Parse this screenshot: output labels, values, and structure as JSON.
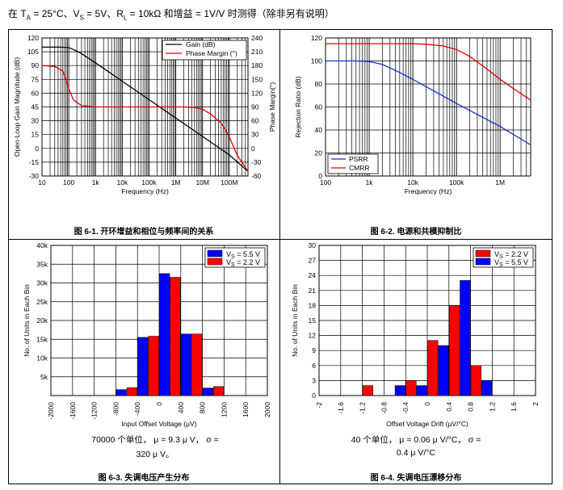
{
  "header": {
    "text": "在 TA = 25°C、VS = 5V、RL = 10kΩ 和增益 = 1V/V 时测得（除非另有说明）",
    "prefix": "在 T",
    "ta_sub": "A",
    "mid1": " = 25°C、V",
    "vs_sub": "S",
    "mid2": " = 5V、R",
    "rl_sub": "L",
    "suffix": " = 10kΩ 和增益 = 1V/V 时测得（除非另有说明）"
  },
  "chart_data": [
    {
      "id": "fig1",
      "type": "line",
      "caption": "图 6-1. 开环增益和相位与频率间的关系",
      "xlabel": "Frequency (Hz)",
      "ylabel": "Open-Loop Gain Magnitude (dB)",
      "y2label": "Phase Margin(°)",
      "xscale": "log",
      "xlim": [
        10,
        500000000
      ],
      "ylim": [
        -30,
        120
      ],
      "y2lim": [
        -60,
        240
      ],
      "x_ticks": [
        10,
        100,
        1000,
        10000,
        100000,
        1000000,
        10000000,
        100000000
      ],
      "x_tick_labels": [
        "10",
        "100",
        "1k",
        "10k",
        "100k",
        "1M",
        "10M",
        "100M"
      ],
      "y_ticks": [
        -30,
        -15,
        0,
        15,
        30,
        45,
        60,
        75,
        90,
        105,
        120
      ],
      "y2_ticks": [
        -60,
        -30,
        0,
        30,
        60,
        90,
        120,
        150,
        180,
        210,
        240
      ],
      "legend": {
        "position": "top-right",
        "entries": [
          "Gain (dB)",
          "Phase Margin (°)"
        ]
      },
      "series": [
        {
          "name": "Gain (dB)",
          "color": "#000000",
          "axis": "left",
          "x": [
            10,
            50,
            100,
            150,
            300,
            1000,
            10000,
            100000,
            1000000,
            10000000,
            100000000,
            500000000
          ],
          "y": [
            110,
            110,
            109.5,
            107.5,
            103,
            93,
            73,
            53,
            33,
            13,
            -7,
            -25
          ]
        },
        {
          "name": "Phase Margin (°)",
          "color": "#e00000",
          "axis": "right",
          "x": [
            10,
            30,
            60,
            100,
            150,
            300,
            1000,
            10000,
            100000,
            1000000,
            2000000,
            5000000,
            10000000,
            20000000,
            50000000,
            100000000,
            200000000,
            500000000
          ],
          "y": [
            180,
            178,
            168,
            130,
            105,
            93,
            90,
            90,
            90,
            90,
            90,
            89,
            85,
            75,
            55,
            25,
            -15,
            -50
          ]
        }
      ]
    },
    {
      "id": "fig2",
      "type": "line",
      "caption": "图 6-2. 电源和共模抑制比",
      "xlabel": "Frequency (Hz)",
      "ylabel": "Rejection Ratio (dB)",
      "xscale": "log",
      "xlim": [
        100,
        5000000
      ],
      "ylim": [
        0,
        120
      ],
      "x_ticks": [
        100,
        1000,
        10000,
        100000,
        1000000
      ],
      "x_tick_labels": [
        "100",
        "1k",
        "10k",
        "100k",
        "1M"
      ],
      "y_ticks": [
        0,
        20,
        40,
        60,
        80,
        100,
        120
      ],
      "legend": {
        "position": "bottom-left",
        "entries": [
          "PSRR",
          "CMRR"
        ]
      },
      "series": [
        {
          "name": "PSRR",
          "color": "#1030d0",
          "x": [
            100,
            500,
            1000,
            2000,
            5000,
            10000,
            100000,
            1000000,
            5000000
          ],
          "y": [
            100,
            100,
            99.5,
            97,
            90,
            84,
            63,
            43,
            27
          ]
        },
        {
          "name": "CMRR",
          "color": "#e00000",
          "x": [
            100,
            1000,
            10000,
            20000,
            50000,
            100000,
            200000,
            500000,
            1000000,
            2000000,
            5000000
          ],
          "y": [
            115,
            115,
            115,
            114.5,
            113,
            110,
            104,
            93,
            84,
            76,
            66
          ]
        }
      ]
    },
    {
      "id": "fig3",
      "type": "bar",
      "caption": "图 6-3. 失调电压产生分布",
      "xlabel": "Input Offset Voltage (µV)",
      "ylabel": "No. of Units in Each Bin",
      "ylim": [
        0,
        40000
      ],
      "y_ticks": [
        5000,
        10000,
        15000,
        20000,
        25000,
        30000,
        35000,
        40000
      ],
      "y_tick_labels": [
        "5k",
        "10k",
        "15k",
        "20k",
        "25k",
        "30k",
        "35k",
        "40k"
      ],
      "x_tick_values": [
        -2000,
        -1600,
        -1200,
        -800,
        -400,
        0,
        400,
        800,
        1200,
        1600,
        2000
      ],
      "x_tick_labels": [
        "-2000",
        "-1600",
        "-1200",
        "-800",
        "-400",
        "0",
        "400",
        "800",
        "1200",
        "1600",
        "2000"
      ],
      "bin_starts": [
        -2000,
        -1600,
        -1200,
        -800,
        -400,
        0,
        400,
        800,
        1200,
        1600
      ],
      "bin_width": 400,
      "legend": {
        "position": "top-right",
        "entries": [
          "VS = 5.5 V",
          "VS = 2.2 V"
        ]
      },
      "series": [
        {
          "name": "VS = 5.5 V",
          "color": "#0000ff",
          "values": [
            0,
            0,
            0,
            1600,
            15500,
            32500,
            16400,
            2000,
            0,
            0
          ]
        },
        {
          "name": "VS = 2.2 V",
          "color": "#ff0000",
          "values": [
            0,
            0,
            0,
            2100,
            15800,
            31500,
            16400,
            2400,
            0,
            0
          ]
        }
      ],
      "stat_line1": "70000 个单位，  μ = 9.3 μ V，  σ =",
      "stat_line2": "320 μ V。"
    },
    {
      "id": "fig4",
      "type": "bar",
      "caption": "图 6-4. 失调电压漂移分布",
      "xlabel": "Offset Voltage Drift (µV/°C)",
      "ylabel": "No. of Units in Each Bin",
      "ylim": [
        0,
        30
      ],
      "y_ticks": [
        0,
        3,
        6,
        9,
        12,
        15,
        18,
        21,
        24,
        27,
        30
      ],
      "x_tick_values": [
        -2,
        -1.6,
        -1.2,
        -0.8,
        -0.4,
        0,
        0.4,
        0.8,
        1.2,
        1.6,
        2
      ],
      "x_tick_labels": [
        "-2",
        "-1.6",
        "-1.2",
        "-0.8",
        "-0.4",
        "0",
        "0.4",
        "0.8",
        "1.2",
        "1.6",
        "2"
      ],
      "bin_starts": [
        -2,
        -1.6,
        -1.2,
        -0.8,
        -0.4,
        0,
        0.4,
        0.8,
        1.2,
        1.6
      ],
      "bin_width": 0.4,
      "legend": {
        "position": "top-right",
        "entries": [
          "VS = 2.2 V",
          "VS = 5.5 V"
        ]
      },
      "series": [
        {
          "name": "VS = 2.2 V",
          "color": "#ff0000",
          "values": [
            0,
            0,
            2,
            0,
            3,
            11,
            18,
            6,
            0,
            0
          ]
        },
        {
          "name": "VS = 5.5 V",
          "color": "#0000ff",
          "values": [
            0,
            0,
            0,
            2,
            2,
            10,
            23,
            3,
            0,
            0
          ]
        }
      ],
      "stat_line1": "40 个单位，  μ = 0.06 μ V/°C，  σ =",
      "stat_line2": "0.4 μ V/°C"
    }
  ]
}
